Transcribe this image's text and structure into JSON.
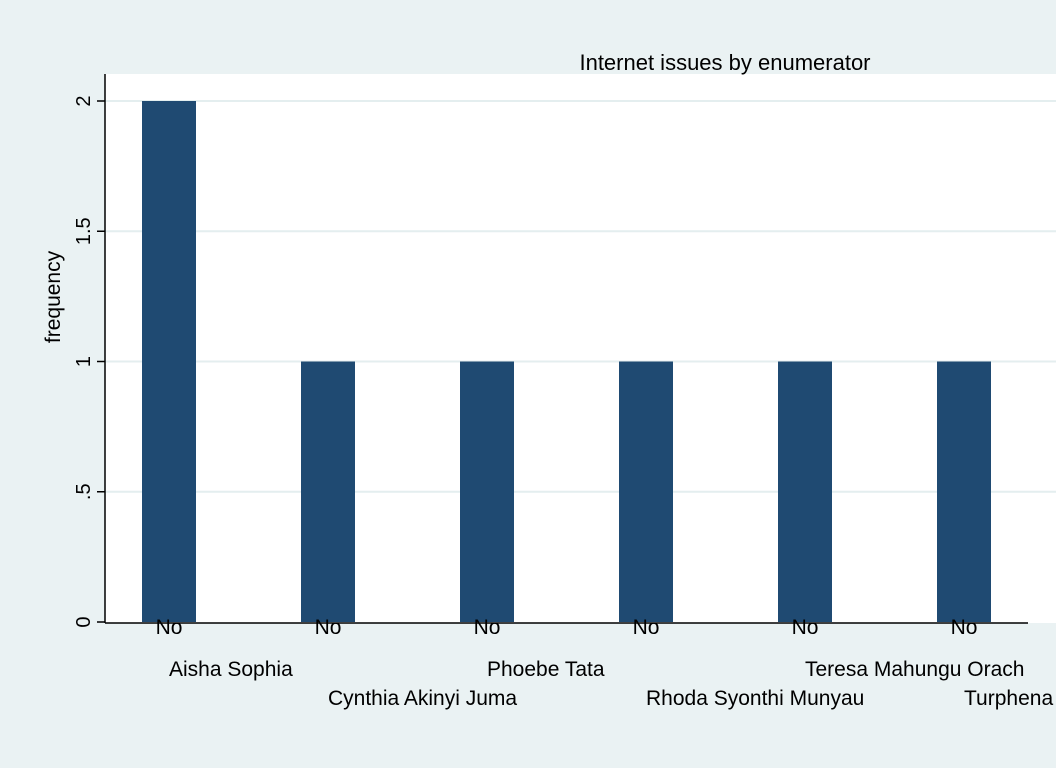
{
  "chart_data": {
    "type": "bar",
    "title": "Internet issues by enumerator",
    "ylabel": "frequency",
    "xlabel": "",
    "ylim": [
      0,
      2
    ],
    "yticks": [
      0,
      0.5,
      1,
      1.5,
      2
    ],
    "ytick_labels": [
      "0",
      ".5",
      "1",
      "1.5",
      "2"
    ],
    "grid": true,
    "categories": [
      "Aisha Sophia",
      "Cynthia Akinyi Juma",
      "Phoebe Tata",
      "Rhoda Syonthi Munyau",
      "Teresa Mahungu Orach",
      "Turphena"
    ],
    "bar_labels": [
      "No",
      "No",
      "No",
      "No",
      "No",
      "No"
    ],
    "values": [
      2,
      1,
      1,
      1,
      1,
      1
    ],
    "bar_color": "#1f4a72",
    "plot_background": "#ffffff",
    "page_background": "#eaf2f3"
  }
}
